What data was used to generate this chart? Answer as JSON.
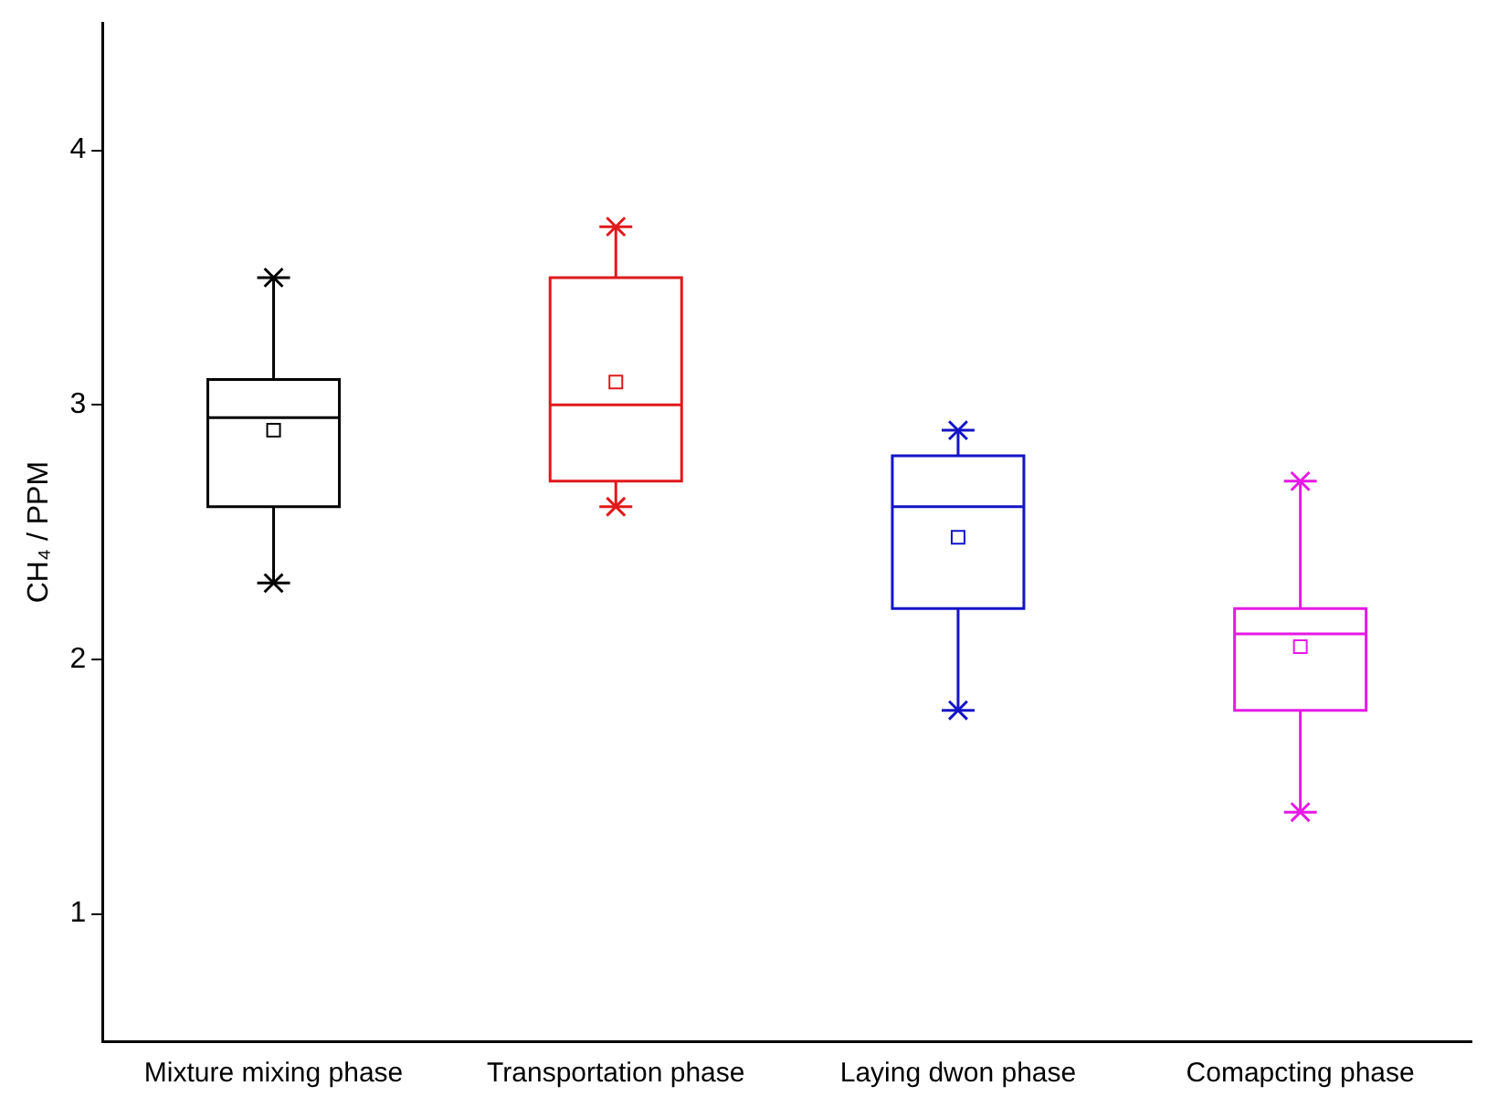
{
  "chart_data": {
    "type": "box",
    "ylabel": "CH₄ / PPM",
    "categories": [
      "Mixture mixing phase",
      "Transportation phase",
      "Laying dwon phase",
      "Comapcting phase"
    ],
    "colors": [
      "#000000",
      "#e0191b",
      "#1414c8",
      "#e619e6"
    ],
    "boxes": [
      {
        "low": 2.3,
        "q1": 2.6,
        "median": 2.95,
        "q3": 3.1,
        "high": 3.5,
        "mean": 2.9
      },
      {
        "low": 2.6,
        "q1": 2.7,
        "median": 3.0,
        "q3": 3.5,
        "high": 3.7,
        "mean": 3.09
      },
      {
        "low": 1.8,
        "q1": 2.2,
        "median": 2.6,
        "q3": 2.8,
        "high": 2.9,
        "mean": 2.48
      },
      {
        "low": 1.4,
        "q1": 1.8,
        "median": 2.1,
        "q3": 2.2,
        "high": 2.7,
        "mean": 2.05
      }
    ],
    "ylim": [
      0.5,
      4.5
    ],
    "yticks": [
      1,
      2,
      3,
      4
    ],
    "series": [
      {
        "type": "scatter",
        "marker": "cross",
        "x": [
          "Mixture mixing phase",
          "Transportation phase",
          "Laying dwon phase",
          "Comapcting phase",
          "Mixture mixing phase",
          "Transportation phase",
          "Laying dwon phase",
          "Comapcting phase"
        ],
        "values": [
          3.5,
          3.7,
          2.9,
          2.7,
          2.3,
          2.6,
          1.8,
          1.4
        ],
        "colors": [
          "#000000",
          "#e0191b",
          "#1414c8",
          "#e619e6",
          "#000000",
          "#e0191b",
          "#1414c8",
          "#e619e6"
        ]
      }
    ],
    "grid": false,
    "legend": false
  }
}
